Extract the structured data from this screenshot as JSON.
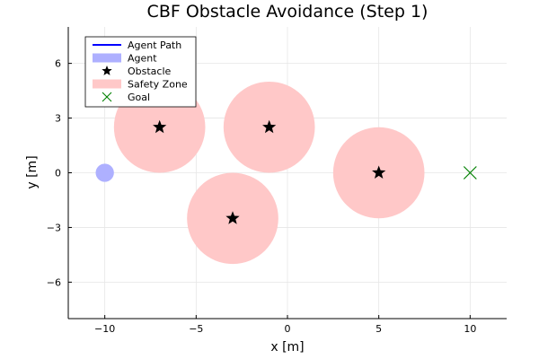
{
  "chart_data": {
    "type": "scatter",
    "title": "CBF Obstacle Avoidance (Step 1)",
    "xlabel": "x [m]",
    "ylabel": "y [m]",
    "xlim": [
      -12,
      12
    ],
    "ylim": [
      -8,
      8
    ],
    "xticks": [
      -10,
      -5,
      0,
      5,
      10
    ],
    "xtick_labels": [
      "−10",
      "−5",
      "0",
      "5",
      "10"
    ],
    "yticks": [
      -6,
      -3,
      0,
      3,
      6
    ],
    "ytick_labels": [
      "−6",
      "−3",
      "0",
      "3",
      "6"
    ],
    "grid": true,
    "legend_position": "top-left",
    "legend": [
      {
        "key": "agent_path",
        "label": "Agent Path",
        "symbol": "line",
        "color": "#0000ff"
      },
      {
        "key": "agent",
        "label": "Agent",
        "symbol": "patch",
        "color": "#aeb0ff"
      },
      {
        "key": "obstacle",
        "label": "Obstacle",
        "symbol": "star",
        "color": "#000000"
      },
      {
        "key": "safety_zone",
        "label": "Safety Zone",
        "symbol": "patch",
        "color": "#ffc8c8"
      },
      {
        "key": "goal",
        "label": "Goal",
        "symbol": "x",
        "color": "#008000"
      }
    ],
    "agent": {
      "x": -10,
      "y": 0,
      "radius": 0.5,
      "color": "#aeb0ff"
    },
    "agent_path": {
      "x": [
        -10
      ],
      "y": [
        0
      ],
      "color": "#0000ff"
    },
    "obstacles": [
      {
        "x": -7,
        "y": 2.5,
        "safety_radius": 2.5
      },
      {
        "x": -1,
        "y": 2.5,
        "safety_radius": 2.5
      },
      {
        "x": -3,
        "y": -2.5,
        "safety_radius": 2.5
      },
      {
        "x": 5,
        "y": 0,
        "safety_radius": 2.5
      }
    ],
    "obstacle_color": "#000000",
    "safety_zone_color": "#ffc8c8",
    "goal": {
      "x": 10,
      "y": 0,
      "color": "#008000"
    }
  }
}
